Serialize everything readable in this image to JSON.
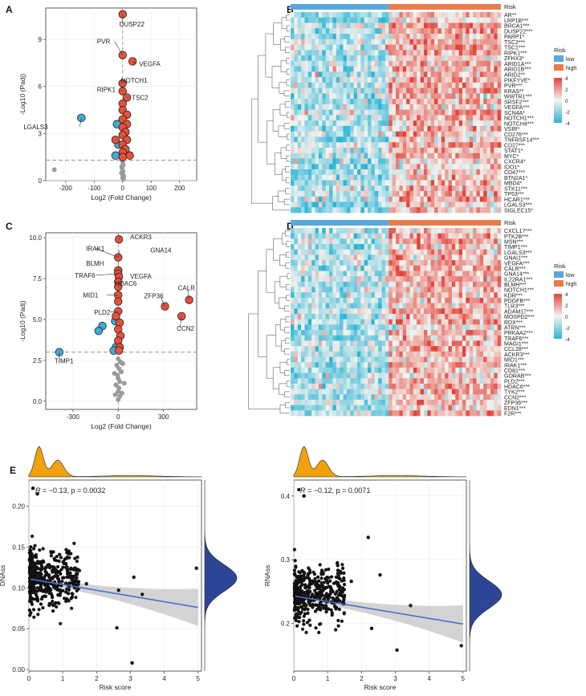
{
  "figure": {
    "panel_letters": [
      "A",
      "B",
      "C",
      "D",
      "E",
      "F"
    ]
  },
  "colors": {
    "volcano_up": "#e8503a",
    "volcano_down": "#41aad9",
    "volcano_ns": "#9b9b9b",
    "risk_low": "#58a7dd",
    "risk_high": "#ec7b4a",
    "heat_pos": "#e2443a",
    "heat_neg": "#29b5d6",
    "density_top": "#f2a10b",
    "density_right": "#2d4596",
    "fit_line": "#4a70c4",
    "ci_band": "#c8c8c8"
  },
  "chart_data": [
    {
      "panel": "A",
      "type": "scatter",
      "subtype": "volcano",
      "xlabel": "Log2 (Fold Change)",
      "ylabel": "-Log10 (Padj)",
      "xlim": [
        -270,
        260
      ],
      "ylim": [
        0,
        11
      ],
      "xticks": [
        -200,
        -100,
        0,
        100,
        200
      ],
      "yticks": [
        0,
        3,
        6,
        9
      ],
      "threshold_y": 1.3,
      "points_up": [
        [
          0,
          10.6
        ],
        [
          0,
          8.0
        ],
        [
          35,
          7.6
        ],
        [
          0,
          6.2
        ],
        [
          0,
          5.7
        ],
        [
          15,
          5.3
        ],
        [
          0,
          4.9
        ],
        [
          0,
          4.5
        ],
        [
          15,
          4.2
        ],
        [
          0,
          3.9
        ],
        [
          15,
          3.6
        ],
        [
          0,
          3.4
        ],
        [
          10,
          3.1
        ],
        [
          0,
          2.9
        ],
        [
          15,
          2.6
        ],
        [
          0,
          2.3
        ],
        [
          10,
          2.0
        ],
        [
          0,
          1.8
        ],
        [
          25,
          1.6
        ],
        [
          0,
          1.5
        ],
        [
          -25,
          2.6
        ]
      ],
      "points_down": [
        [
          -145,
          4.0
        ],
        [
          -20,
          3.6
        ],
        [
          -15,
          2.3
        ],
        [
          -25,
          1.6
        ]
      ],
      "points_ns": [
        [
          -240,
          0.7
        ],
        [
          0,
          1.2
        ],
        [
          2,
          1.0
        ],
        [
          -2,
          0.8
        ],
        [
          1,
          0.6
        ],
        [
          -1,
          0.4
        ],
        [
          0,
          0.2
        ],
        [
          3,
          0.1
        ],
        [
          -3,
          0.9
        ],
        [
          4,
          0.3
        ],
        [
          -4,
          0.5
        ]
      ],
      "labels": [
        {
          "text": "DUSP22",
          "x": 0,
          "y": 10.6
        },
        {
          "text": "PVR",
          "x": 0,
          "y": 8.0
        },
        {
          "text": "VEGFA",
          "x": 35,
          "y": 7.6
        },
        {
          "text": "NOTCH1",
          "x": 0,
          "y": 6.2
        },
        {
          "text": "RIPK1",
          "x": 0,
          "y": 5.7
        },
        {
          "text": "TSC2",
          "x": 15,
          "y": 5.3
        },
        {
          "text": "LGALS3",
          "x": -145,
          "y": 4.0
        }
      ]
    },
    {
      "panel": "B",
      "type": "heatmap",
      "annotation_label": "Risk",
      "legend_title": "Risk",
      "legend_items": [
        "low",
        "high"
      ],
      "color_scale_ticks": [
        "4",
        "2",
        "0",
        "-2",
        "-4"
      ],
      "n_low_columns": 0.46,
      "genes": [
        "AR**",
        "LRP1B***",
        "BRCA1***",
        "DUSP22***",
        "PARP1*",
        "TSC2***",
        "TSC1***",
        "RIPK1***",
        "ZFHX3*",
        "ARID1A***",
        "ARID1B***",
        "ARID2**",
        "PIKFYVE*",
        "PVR***",
        "KRAS**",
        "WWTR1***",
        "SRSF2***",
        "VEGFA***",
        "SCN4A*",
        "NOTCH1***",
        "NOTCH4***",
        "VSIR*",
        "CD276***",
        "TNFRSF14***",
        "CD27***",
        "STAT1*",
        "MYC*",
        "CXCR4*",
        "IDO1*",
        "CD47***",
        "BTN2A1*",
        "MBD4*",
        "STK11***",
        "TP53***",
        "HCAR1***",
        "LGALS3***",
        "SIGLEC15*"
      ]
    },
    {
      "panel": "C",
      "type": "scatter",
      "subtype": "volcano",
      "xlabel": "Log2 (Fold Change)",
      "ylabel": "-Log10 (Padj)",
      "xlim": [
        -480,
        520
      ],
      "ylim": [
        -0.5,
        10.3
      ],
      "xticks": [
        -300,
        0,
        300
      ],
      "yticks": [
        0.0,
        2.5,
        5.0,
        7.5,
        10.0
      ],
      "threshold_y": 3.0,
      "points_up": [
        [
          5,
          9.9
        ],
        [
          0,
          8.8
        ],
        [
          0,
          8.0
        ],
        [
          0,
          7.8
        ],
        [
          5,
          7.6
        ],
        [
          0,
          7.3
        ],
        [
          0,
          7.0
        ],
        [
          0,
          6.5
        ],
        [
          0,
          6.1
        ],
        [
          310,
          5.8
        ],
        [
          470,
          6.2
        ],
        [
          420,
          5.2
        ],
        [
          0,
          5.5
        ],
        [
          -15,
          5.2
        ],
        [
          10,
          4.8
        ],
        [
          0,
          4.4
        ],
        [
          15,
          4.0
        ],
        [
          0,
          3.7
        ],
        [
          10,
          3.3
        ],
        [
          5,
          3.1
        ]
      ],
      "points_down": [
        [
          -390,
          3.0
        ],
        [
          -105,
          4.6
        ],
        [
          -130,
          4.3
        ],
        [
          -20,
          4.9
        ],
        [
          -15,
          3.3
        ],
        [
          -30,
          3.1
        ]
      ],
      "points_ns": [
        [
          0,
          2.6
        ],
        [
          15,
          2.4
        ],
        [
          -10,
          2.2
        ],
        [
          5,
          2.0
        ],
        [
          20,
          1.8
        ],
        [
          -5,
          1.6
        ],
        [
          0,
          1.4
        ],
        [
          10,
          1.2
        ],
        [
          -15,
          1.0
        ],
        [
          5,
          0.8
        ],
        [
          0,
          0.6
        ],
        [
          25,
          0.5
        ],
        [
          -20,
          0.4
        ],
        [
          10,
          0.3
        ],
        [
          0,
          0.1
        ],
        [
          30,
          2.3
        ],
        [
          40,
          1.1
        ],
        [
          -25,
          1.7
        ]
      ],
      "labels": [
        {
          "text": "ACKR3",
          "x": 5,
          "y": 9.9
        },
        {
          "text": "IRAK1",
          "x": 0,
          "y": 8.8
        },
        {
          "text": "GNA14",
          "x": 0,
          "y": 8.8
        },
        {
          "text": "BLMH",
          "x": 0,
          "y": 8.0
        },
        {
          "text": "TRAF6",
          "x": 0,
          "y": 7.8
        },
        {
          "text": "VEGFA",
          "x": 5,
          "y": 7.6
        },
        {
          "text": "HDAC6",
          "x": 0,
          "y": 7.0
        },
        {
          "text": "MID1",
          "x": 0,
          "y": 6.5
        },
        {
          "text": "ZFP36",
          "x": 310,
          "y": 5.8
        },
        {
          "text": "CALR",
          "x": 470,
          "y": 6.2
        },
        {
          "text": "PLD2",
          "x": 0,
          "y": 5.5
        },
        {
          "text": "CCN2",
          "x": 420,
          "y": 5.2
        },
        {
          "text": "TIMP1",
          "x": -390,
          "y": 3.0
        }
      ]
    },
    {
      "panel": "D",
      "type": "heatmap",
      "annotation_label": "Risk",
      "legend_title": "Risk",
      "legend_items": [
        "low",
        "high"
      ],
      "color_scale_ticks": [
        "4",
        "2",
        "0",
        "-2",
        "-4"
      ],
      "n_low_columns": 0.47,
      "genes": [
        "CXCL17***",
        "PTK2B***",
        "MSN***",
        "TIMP1***",
        "LGALS3***",
        "GNAI1***",
        "VEGFA***",
        "CALR***",
        "GNA14***",
        "IL22RA1***",
        "BLMH***",
        "NOTCH1***",
        "KDR***",
        "PDGFB***",
        "TLR3***",
        "ADAM17***",
        "MOSPD2***",
        "RDX***",
        "ATRN***",
        "PRKAA2***",
        "TRAF6***",
        "MAGI1***",
        "CCL28***",
        "ACKR3***",
        "MID1***",
        "IRAK1***",
        "CD81***",
        "GORAB***",
        "PLD2***",
        "HDAC6***",
        "TYK2***",
        "CCN2***",
        "ZFP36***",
        "EDN1***",
        "F2R***"
      ]
    },
    {
      "panel": "E",
      "type": "scatter",
      "subtype": "correlation",
      "xlabel": "Risk score",
      "ylabel": "DNAss",
      "xlim": [
        0,
        5.1
      ],
      "ylim": [
        -0.002,
        0.232
      ],
      "xticks": [
        0,
        1,
        2,
        3,
        4,
        5
      ],
      "yticks": [
        0.0,
        0.05,
        0.1,
        0.15,
        0.2
      ],
      "stat_r_label": "R",
      "stat_text": "= −0.13, p = 0.0032",
      "fit": {
        "intercept": 0.111,
        "slope": -0.007
      },
      "outliers": [
        [
          0.12,
          0.222
        ],
        [
          0.25,
          0.215
        ],
        [
          1.7,
          0.105
        ],
        [
          2.65,
          0.097
        ],
        [
          3.1,
          0.113
        ],
        [
          3.35,
          0.092
        ],
        [
          4.95,
          0.124
        ],
        [
          3.05,
          0.008
        ],
        [
          2.6,
          0.051
        ]
      ],
      "cluster": {
        "x_range": [
          0.02,
          1.5
        ],
        "y_center": 0.112,
        "y_spread": 0.042,
        "count": 420
      }
    },
    {
      "panel": "F",
      "type": "scatter",
      "subtype": "correlation",
      "xlabel": "Risk score",
      "ylabel": "RNAss",
      "xlim": [
        0,
        5.1
      ],
      "ylim": [
        0.125,
        0.425
      ],
      "xticks": [
        0,
        1,
        2,
        3,
        4,
        5
      ],
      "yticks": [
        0.2,
        0.3,
        0.4
      ],
      "stat_r_label": "R",
      "stat_text": "= −0.12, p = 0.0071",
      "fit": {
        "intercept": 0.243,
        "slope": -0.0088
      },
      "outliers": [
        [
          0.15,
          0.41
        ],
        [
          0.3,
          0.4
        ],
        [
          2.2,
          0.335
        ],
        [
          2.55,
          0.276
        ],
        [
          3.45,
          0.228
        ],
        [
          3.05,
          0.158
        ],
        [
          4.95,
          0.165
        ],
        [
          2.3,
          0.192
        ],
        [
          1.7,
          0.266
        ]
      ],
      "cluster": {
        "x_range": [
          0.02,
          1.5
        ],
        "y_center": 0.245,
        "y_spread": 0.055,
        "count": 420
      }
    }
  ]
}
